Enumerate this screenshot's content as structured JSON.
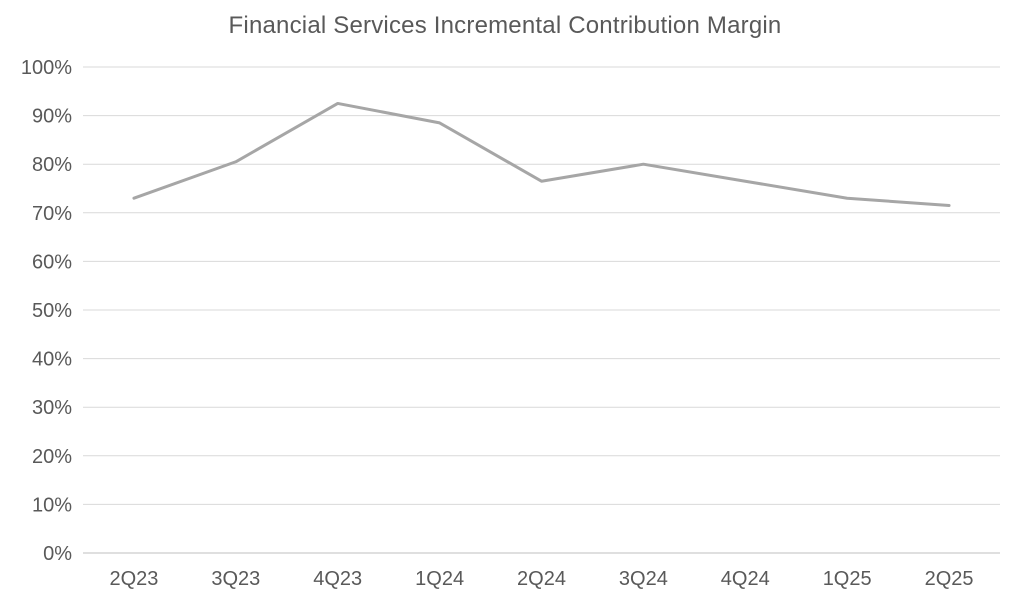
{
  "chart_data": {
    "type": "line",
    "title": "Financial Services Incremental Contribution Margin",
    "categories": [
      "2Q23",
      "3Q23",
      "4Q23",
      "1Q24",
      "2Q24",
      "3Q24",
      "4Q24",
      "1Q25",
      "2Q25"
    ],
    "values": [
      73,
      80.5,
      92.5,
      88.5,
      76.5,
      80,
      76.5,
      73,
      71.5
    ],
    "ylim": [
      0,
      100
    ],
    "ytick_step": 10,
    "ytick_suffix": "%",
    "grid": "horizontal",
    "legend": "none",
    "colors": {
      "line": "#a6a6a6",
      "gridline": "#d9d9d9",
      "axis_line": "#bfbfbf",
      "text": "#595959",
      "background": "#ffffff"
    }
  }
}
